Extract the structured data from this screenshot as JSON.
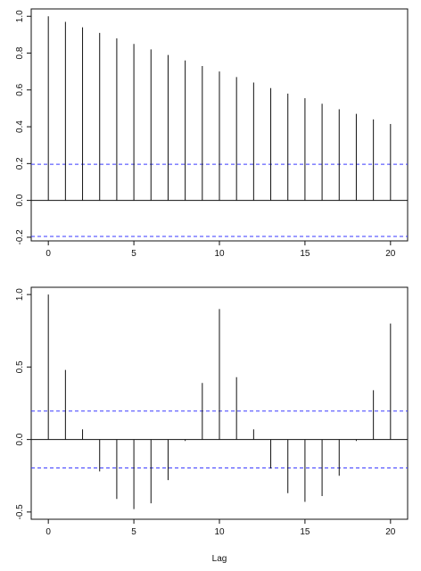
{
  "chart_data": [
    {
      "type": "bar",
      "title": "",
      "xlabel": "",
      "ylabel": "",
      "x": [
        0,
        1,
        2,
        3,
        4,
        5,
        6,
        7,
        8,
        9,
        10,
        11,
        12,
        13,
        14,
        15,
        16,
        17,
        18,
        19,
        20
      ],
      "values": [
        1.0,
        0.97,
        0.94,
        0.91,
        0.88,
        0.85,
        0.82,
        0.79,
        0.76,
        0.73,
        0.7,
        0.67,
        0.64,
        0.61,
        0.58,
        0.555,
        0.525,
        0.495,
        0.47,
        0.44,
        0.415
      ],
      "xlim": [
        -1,
        21
      ],
      "ylim": [
        -0.22,
        1.04
      ],
      "x_ticks": [
        "0",
        "5",
        "10",
        "15",
        "20"
      ],
      "y_ticks": [
        "-0.2",
        "0.0",
        "0.2",
        "0.4",
        "0.6",
        "0.8",
        "1.0"
      ],
      "y_tick_values": [
        -0.2,
        0.0,
        0.2,
        0.4,
        0.6,
        0.8,
        1.0
      ],
      "x_tick_values": [
        0,
        5,
        10,
        15,
        20
      ],
      "confidence_bound": 0.196,
      "bound_color": "#3a3aff",
      "grid": false
    },
    {
      "type": "bar",
      "title": "",
      "xlabel": "Lag",
      "ylabel": "",
      "x": [
        0,
        1,
        2,
        3,
        4,
        5,
        6,
        7,
        8,
        9,
        10,
        11,
        12,
        13,
        14,
        15,
        16,
        17,
        18,
        19,
        20
      ],
      "values": [
        1.0,
        0.48,
        0.07,
        -0.22,
        -0.41,
        -0.48,
        -0.44,
        -0.28,
        -0.01,
        0.39,
        0.9,
        0.43,
        0.07,
        -0.2,
        -0.37,
        -0.43,
        -0.39,
        -0.25,
        -0.01,
        0.34,
        0.8
      ],
      "xlim": [
        -1,
        21
      ],
      "ylim": [
        -0.55,
        1.05
      ],
      "x_ticks": [
        "0",
        "5",
        "10",
        "15",
        "20"
      ],
      "y_ticks": [
        "-0.5",
        "0.0",
        "0.5",
        "1.0"
      ],
      "y_tick_values": [
        -0.5,
        0.0,
        0.5,
        1.0
      ],
      "x_tick_values": [
        0,
        5,
        10,
        15,
        20
      ],
      "confidence_bound": 0.196,
      "bound_color": "#3a3aff",
      "grid": false
    }
  ]
}
